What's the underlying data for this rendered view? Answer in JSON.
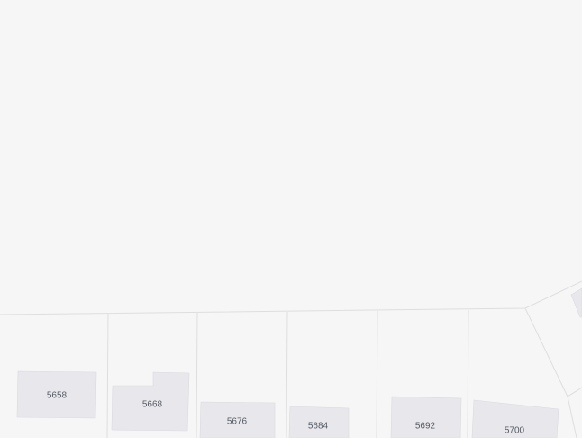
{
  "map": {
    "background_color": "#f6f6f6",
    "building_color": "#e8e8ec",
    "parcel_line_color": "#dedede",
    "label_color": "#555a63",
    "buildings": [
      {
        "id": "building-5658",
        "house_number": "5658"
      },
      {
        "id": "building-5668",
        "house_number": "5668"
      },
      {
        "id": "building-5676",
        "house_number": "5676"
      },
      {
        "id": "building-5684",
        "house_number": "5684"
      },
      {
        "id": "building-5692",
        "house_number": "5692"
      },
      {
        "id": "building-5700",
        "house_number": "5700"
      }
    ]
  }
}
